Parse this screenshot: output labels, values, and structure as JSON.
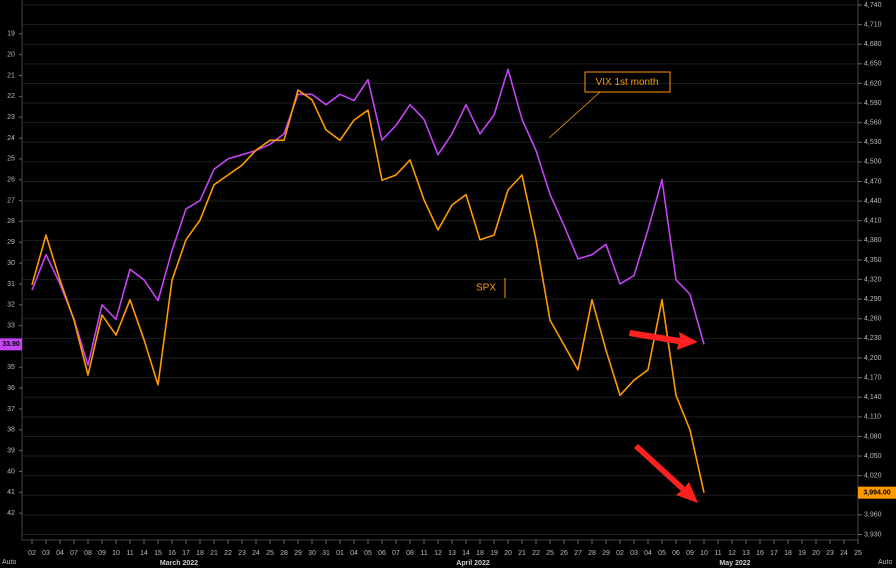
{
  "chart_data": {
    "type": "line",
    "annotations": [
      "VIX 1st month",
      "SPX"
    ],
    "months": [
      "March 2022",
      "April 2022",
      "May 2022"
    ],
    "left_axis_mode": "Auto",
    "right_axis_mode": "Auto",
    "categories": [
      "02",
      "03",
      "04",
      "07",
      "08",
      "09",
      "10",
      "11",
      "14",
      "15",
      "16",
      "17",
      "18",
      "21",
      "22",
      "23",
      "24",
      "25",
      "28",
      "29",
      "30",
      "31",
      "01",
      "04",
      "05",
      "06",
      "07",
      "08",
      "11",
      "12",
      "13",
      "14",
      "18",
      "19",
      "20",
      "21",
      "22",
      "25",
      "26",
      "27",
      "28",
      "29",
      "02",
      "03",
      "04",
      "05",
      "06",
      "09",
      "10",
      "11",
      "12",
      "13",
      "16",
      "17",
      "18",
      "19",
      "20",
      "23",
      "24",
      "25"
    ],
    "ylim": [
      18,
      43
    ],
    "y_inverted": true,
    "yticks": [
      19,
      20,
      21,
      22,
      23,
      24,
      25,
      26,
      27,
      28,
      29,
      30,
      31,
      32,
      33,
      34,
      35,
      36,
      37,
      38,
      39,
      40,
      41,
      42
    ],
    "y2lim": [
      3930,
      4740
    ],
    "y2ticks": [
      {
        "value": 4740,
        "label": "4,740"
      },
      {
        "value": 4710,
        "label": "4,710"
      },
      {
        "value": 4680,
        "label": "4,680"
      },
      {
        "value": 4650,
        "label": "4,650"
      },
      {
        "value": 4620,
        "label": "4,620"
      },
      {
        "value": 4590,
        "label": "4,590"
      },
      {
        "value": 4560,
        "label": "4,560"
      },
      {
        "value": 4530,
        "label": "4,530"
      },
      {
        "value": 4500,
        "label": "4,500"
      },
      {
        "value": 4470,
        "label": "4,470"
      },
      {
        "value": 4440,
        "label": "4,440"
      },
      {
        "value": 4410,
        "label": "4,410"
      },
      {
        "value": 4380,
        "label": "4,380"
      },
      {
        "value": 4350,
        "label": "4,350"
      },
      {
        "value": 4320,
        "label": "4,320"
      },
      {
        "value": 4290,
        "label": "4,290"
      },
      {
        "value": 4260,
        "label": "4,260"
      },
      {
        "value": 4230,
        "label": "4,230"
      },
      {
        "value": 4200,
        "label": "4,200"
      },
      {
        "value": 4170,
        "label": "4,170"
      },
      {
        "value": 4140,
        "label": "4,140"
      },
      {
        "value": 4110,
        "label": "4,110"
      },
      {
        "value": 4080,
        "label": "4,080"
      },
      {
        "value": 4050,
        "label": "4,050"
      },
      {
        "value": 4020,
        "label": "4,020"
      },
      {
        "value": 3990,
        "label": "3,990"
      },
      {
        "value": 3960,
        "label": "3,960"
      },
      {
        "value": 3930,
        "label": "3,930"
      }
    ],
    "grid": true,
    "series": [
      {
        "name": "VIX 1st month",
        "color": "#c444f4",
        "axis": "y",
        "values": [
          31.3,
          29.6,
          31.0,
          32.7,
          34.9,
          32.0,
          32.7,
          30.3,
          30.8,
          31.8,
          29.4,
          27.4,
          27.0,
          25.5,
          25.0,
          24.8,
          24.6,
          24.3,
          23.8,
          21.9,
          21.9,
          22.4,
          21.9,
          22.2,
          21.2,
          24.1,
          23.4,
          22.4,
          23.1,
          24.8,
          23.8,
          22.4,
          23.8,
          22.9,
          20.7,
          23.1,
          24.6,
          26.7,
          28.2,
          29.8,
          29.6,
          29.1,
          31.0,
          30.6,
          28.4,
          26.0,
          30.8,
          31.5,
          33.9,
          null,
          null,
          null,
          null,
          null,
          null,
          null,
          null,
          null,
          null,
          null
        ],
        "value_labels": [
          null,
          null,
          null,
          null,
          null,
          null,
          null,
          null,
          null,
          null,
          null,
          null,
          null,
          null,
          null,
          null,
          null,
          null,
          null,
          null,
          null,
          null,
          null,
          null,
          null,
          null,
          null,
          null,
          null,
          null,
          null,
          null,
          null,
          null,
          null,
          null,
          null,
          null,
          null,
          null,
          null,
          null,
          null,
          null,
          null,
          null,
          null,
          null,
          "33.90",
          null,
          null,
          null,
          null,
          null,
          null,
          null,
          null,
          null,
          null,
          null
        ]
      },
      {
        "name": "SPX",
        "color": "#ff9a00",
        "axis": "y2",
        "values": [
          4312,
          4388,
          4319,
          4258,
          4174,
          4266,
          4235,
          4289,
          4228,
          4159,
          4319,
          4381,
          4411,
          4465,
          4480,
          4495,
          4518,
          4533,
          4533,
          4610,
          4595,
          4549,
          4533,
          4564,
          4579,
          4472,
          4480,
          4503,
          4442,
          4396,
          4434,
          4450,
          4381,
          4388,
          4457,
          4480,
          4381,
          4258,
          4220,
          4182,
          4289,
          4212,
          4143,
          4166,
          4182,
          4289,
          4143,
          4090,
          3994,
          null,
          null,
          null,
          null,
          null,
          null,
          null,
          null,
          null,
          null,
          null
        ],
        "value_labels": [
          null,
          null,
          null,
          null,
          null,
          null,
          null,
          null,
          null,
          null,
          null,
          null,
          null,
          null,
          null,
          null,
          null,
          null,
          null,
          null,
          null,
          null,
          null,
          null,
          null,
          null,
          null,
          null,
          null,
          null,
          null,
          null,
          null,
          null,
          null,
          null,
          null,
          null,
          null,
          null,
          null,
          null,
          null,
          null,
          null,
          null,
          null,
          null,
          "3,994.00",
          null,
          null,
          null,
          null,
          null,
          null,
          null,
          null,
          null,
          null,
          null
        ]
      }
    ]
  }
}
